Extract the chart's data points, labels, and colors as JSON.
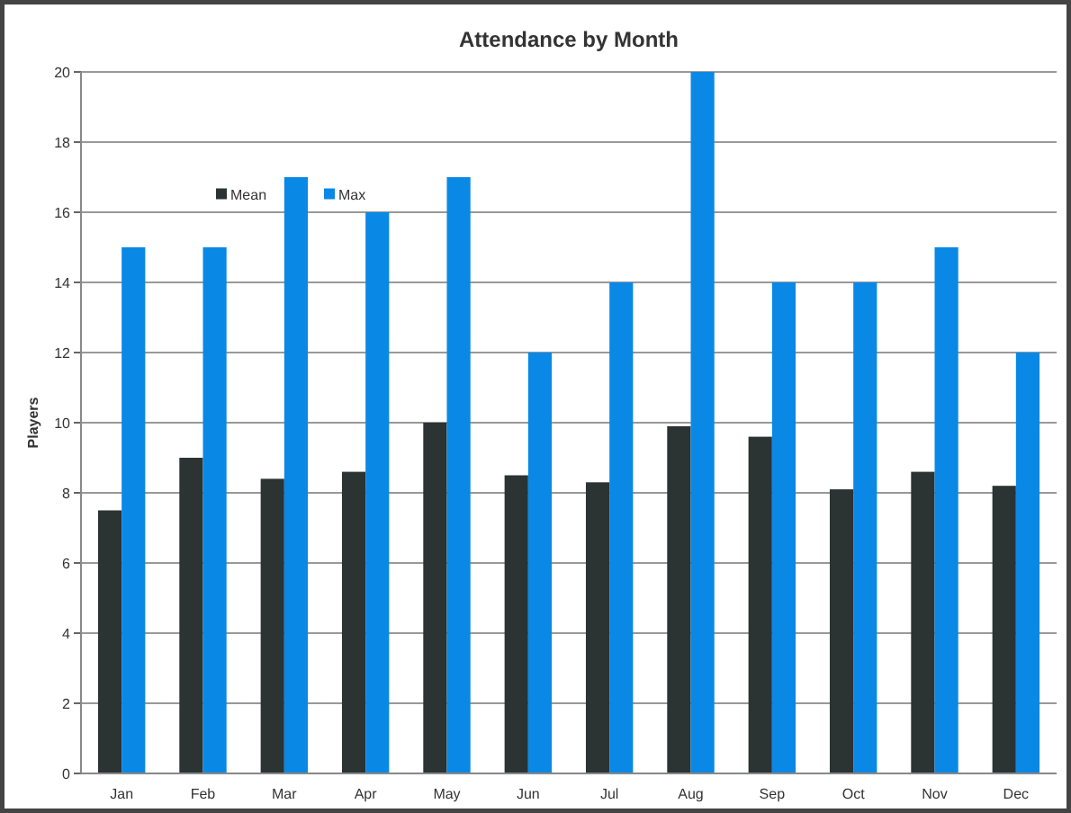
{
  "chart_data": {
    "type": "bar",
    "title": "Attendance by Month",
    "ylabel": "Players",
    "categories": [
      "Jan",
      "Feb",
      "Mar",
      "Apr",
      "May",
      "Jun",
      "Jul",
      "Aug",
      "Sep",
      "Oct",
      "Nov",
      "Dec"
    ],
    "series": [
      {
        "name": "Mean",
        "color": "#2b3333",
        "values": [
          7.5,
          9.0,
          8.4,
          8.6,
          10.0,
          8.5,
          8.3,
          9.9,
          9.6,
          8.1,
          8.6,
          8.2
        ]
      },
      {
        "name": "Max",
        "color": "#0a88e6",
        "values": [
          15,
          15,
          17,
          16,
          17,
          12,
          14,
          20,
          14,
          14,
          15,
          12
        ]
      }
    ],
    "ylim": [
      0,
      20
    ],
    "yticks": [
      0,
      2,
      4,
      6,
      8,
      10,
      12,
      14,
      16,
      18,
      20
    ],
    "grid": "y",
    "legend": "top left"
  }
}
